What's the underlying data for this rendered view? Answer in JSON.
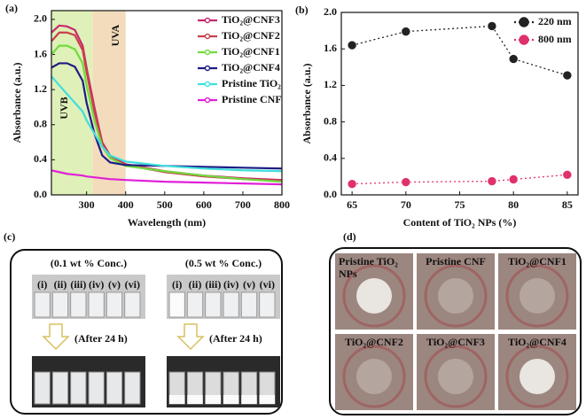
{
  "chart_data": [
    {
      "type": "line",
      "label": "(a)",
      "xlabel": "Wavelength (nm)",
      "ylabel": "Absorbance (a.u.)",
      "x": [
        210,
        230,
        250,
        270,
        290,
        300,
        320,
        340,
        360,
        400,
        500,
        600,
        700,
        800
      ],
      "series": [
        {
          "name": "TiO₂@CNF3",
          "color": "#c8286e",
          "values": [
            1.85,
            1.93,
            1.92,
            1.88,
            1.7,
            1.45,
            1.0,
            0.6,
            0.45,
            0.35,
            0.27,
            0.22,
            0.19,
            0.17
          ]
        },
        {
          "name": "TiO₂@CNF2",
          "color": "#c8404a",
          "values": [
            1.75,
            1.85,
            1.85,
            1.82,
            1.65,
            1.4,
            0.95,
            0.58,
            0.43,
            0.34,
            0.26,
            0.21,
            0.18,
            0.16
          ]
        },
        {
          "name": "TiO₂@CNF1",
          "color": "#6fdc3c",
          "values": [
            1.6,
            1.7,
            1.7,
            1.66,
            1.5,
            1.25,
            0.85,
            0.55,
            0.42,
            0.33,
            0.27,
            0.22,
            0.18,
            0.15
          ]
        },
        {
          "name": "TiO₂@CNF4",
          "color": "#1c1c84",
          "values": [
            1.45,
            1.5,
            1.5,
            1.46,
            1.3,
            1.05,
            0.7,
            0.45,
            0.37,
            0.34,
            0.33,
            0.32,
            0.31,
            0.3
          ]
        },
        {
          "name": "Pristine TiO₂",
          "color": "#3fe0dc",
          "values": [
            1.35,
            1.25,
            1.15,
            1.05,
            0.95,
            0.85,
            0.7,
            0.55,
            0.45,
            0.38,
            0.33,
            0.3,
            0.28,
            0.27
          ]
        },
        {
          "name": "Pristine CNF",
          "color": "#e020d8",
          "values": [
            0.28,
            0.26,
            0.24,
            0.23,
            0.22,
            0.21,
            0.2,
            0.19,
            0.18,
            0.17,
            0.15,
            0.14,
            0.13,
            0.12
          ]
        }
      ],
      "bands": [
        {
          "label": "UVB",
          "range": [
            210,
            315
          ],
          "color": "#dff0b8"
        },
        {
          "label": "UVA",
          "range": [
            315,
            400
          ],
          "color": "#f3dcbc"
        }
      ],
      "xlim": [
        210,
        800
      ],
      "xticks": [
        300,
        400,
        500,
        600,
        700,
        800
      ],
      "ylim": [
        0,
        2.1
      ],
      "yticks": [
        {
          "value": 0,
          "label": "0.0"
        },
        0.4,
        0.8,
        1.2,
        1.6,
        {
          "value": 2,
          "label": "2.0"
        }
      ],
      "legend": "upper right"
    },
    {
      "type": "scatter",
      "label": "(b)",
      "xlabel": "Content of TiO₂ NPs (%)",
      "ylabel": "Absorbance (a.u.)",
      "x": [
        65,
        70,
        78,
        80,
        85
      ],
      "series": [
        {
          "name": "220 nm",
          "color": "#222222",
          "values": [
            1.64,
            1.79,
            1.85,
            1.49,
            1.31
          ]
        },
        {
          "name": "800 nm",
          "color": "#e0306e",
          "values": [
            0.12,
            0.14,
            0.15,
            0.17,
            0.22
          ]
        }
      ],
      "connect": true,
      "xlim": [
        64,
        86
      ],
      "xticks": [
        65,
        70,
        75,
        80,
        85
      ],
      "ylim": [
        0,
        2.0
      ],
      "yticks": [
        {
          "value": 0,
          "label": "0.0"
        },
        0.4,
        0.8,
        1.2,
        1.6,
        {
          "value": 2,
          "label": "2.0"
        }
      ],
      "legend": "upper right"
    }
  ],
  "photos": {
    "c": {
      "label": "(c)",
      "groups": [
        {
          "title": "(0.1 wt % Conc.)",
          "vials": [
            "(i)",
            "(ii)",
            "(iii)",
            "(iv)",
            "(v)",
            "(vi)"
          ],
          "note": "(After 24 h)"
        },
        {
          "title": "(0.5 wt % Conc.)",
          "vials": [
            "(i)",
            "(ii)",
            "(iii)",
            "(iv)",
            "(v)",
            "(vi)"
          ],
          "note": "(After 24 h)"
        }
      ]
    },
    "d": {
      "label": "(d)",
      "tiles": [
        [
          "Pristine TiO₂",
          "NPs"
        ],
        [
          "Pristine CNF"
        ],
        [
          "TiO₂@CNF1"
        ],
        [
          "TiO₂@CNF2"
        ],
        [
          "TiO₂@CNF3"
        ],
        [
          "TiO₂@CNF4"
        ]
      ]
    }
  }
}
